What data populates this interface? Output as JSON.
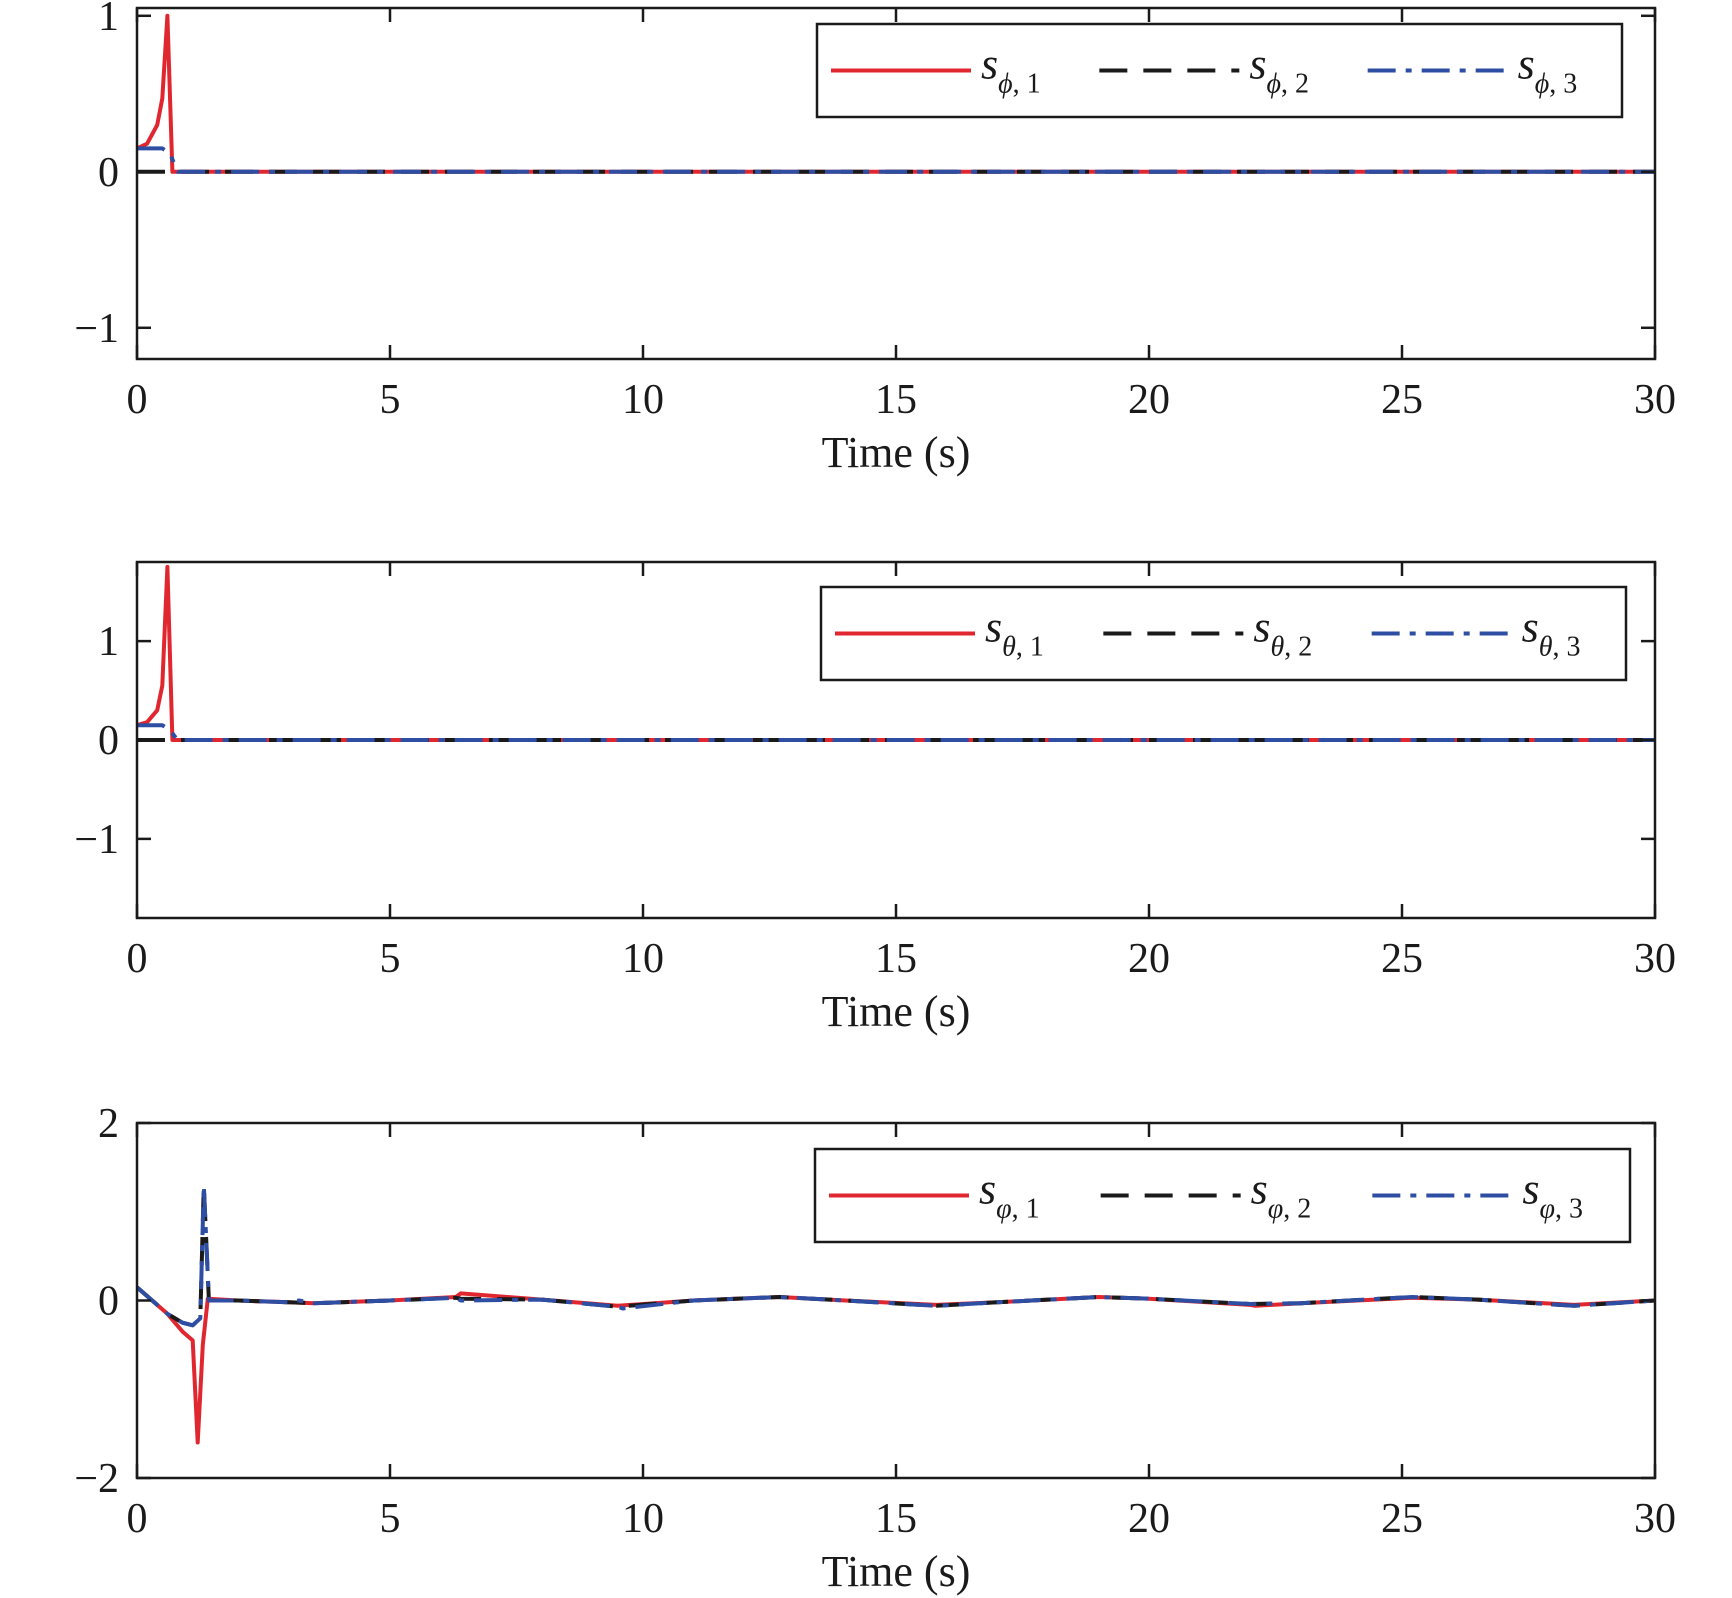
{
  "colors": {
    "s1": "#e0262f",
    "s2": "#1a1a1a",
    "s3": "#2e4ea3",
    "axis": "#1a1a1a",
    "background": "#ffffff"
  },
  "chart_data": [
    {
      "type": "line",
      "xlabel": "Time (s)",
      "ylabel": "",
      "xlim": [
        0,
        30
      ],
      "ylim": [
        -1.2,
        1.05
      ],
      "xticks": [
        0,
        5,
        10,
        15,
        20,
        25,
        30
      ],
      "yticks": [
        -1,
        0,
        1
      ],
      "ytick_labels": [
        "−1",
        "0",
        "1"
      ],
      "grid": false,
      "legend": {
        "placement": "top-right",
        "orientation": "horizontal"
      },
      "series": [
        {
          "name": "s_{ϕ, 1}",
          "base": "s",
          "sub_symbol": "ϕ",
          "sub_index": "1",
          "style": "solid",
          "color": "#e0262f",
          "x": [
            0,
            0.2,
            0.4,
            0.5,
            0.6,
            0.7,
            0.8,
            30
          ],
          "y": [
            0.15,
            0.18,
            0.3,
            0.47,
            1.0,
            0.0,
            0.0,
            0.0
          ]
        },
        {
          "name": "s_{ϕ, 2}",
          "base": "s",
          "sub_symbol": "ϕ",
          "sub_index": "2",
          "style": "dashed",
          "color": "#1a1a1a",
          "x": [
            0,
            0.1,
            0.2,
            30
          ],
          "y": [
            0.0,
            0.0,
            0.0,
            0.0
          ]
        },
        {
          "name": "s_{ϕ, 3}",
          "base": "s",
          "sub_symbol": "ϕ",
          "sub_index": "3",
          "style": "dashdot",
          "color": "#2e4ea3",
          "x": [
            0,
            0.5,
            0.65,
            0.8,
            30
          ],
          "y": [
            0.15,
            0.15,
            0.12,
            0.0,
            0.0
          ]
        }
      ]
    },
    {
      "type": "line",
      "xlabel": "Time (s)",
      "ylabel": "",
      "xlim": [
        0,
        30
      ],
      "ylim": [
        -1.8,
        1.8
      ],
      "xticks": [
        0,
        5,
        10,
        15,
        20,
        25,
        30
      ],
      "yticks": [
        -1,
        0,
        1
      ],
      "ytick_labels": [
        "−1",
        "0",
        "1"
      ],
      "grid": false,
      "legend": {
        "placement": "top-right",
        "orientation": "horizontal"
      },
      "series": [
        {
          "name": "s_{θ, 1}",
          "base": "s",
          "sub_symbol": "θ",
          "sub_index": "1",
          "style": "solid",
          "color": "#e0262f",
          "x": [
            0,
            0.2,
            0.4,
            0.5,
            0.6,
            0.7,
            0.8,
            30
          ],
          "y": [
            0.15,
            0.18,
            0.3,
            0.55,
            1.75,
            0.0,
            0.0,
            0.0
          ]
        },
        {
          "name": "s_{θ, 2}",
          "base": "s",
          "sub_symbol": "θ",
          "sub_index": "2",
          "style": "dashed",
          "color": "#1a1a1a",
          "x": [
            0,
            0.1,
            0.2,
            30
          ],
          "y": [
            0.0,
            0.0,
            0.0,
            0.0
          ]
        },
        {
          "name": "s_{θ, 3}",
          "base": "s",
          "sub_symbol": "θ",
          "sub_index": "3",
          "style": "dashdot",
          "color": "#2e4ea3",
          "x": [
            0,
            0.5,
            0.65,
            0.8,
            30
          ],
          "y": [
            0.15,
            0.15,
            0.1,
            0.0,
            0.0
          ]
        }
      ]
    },
    {
      "type": "line",
      "xlabel": "Time (s)",
      "ylabel": "",
      "xlim": [
        0,
        30
      ],
      "ylim": [
        -2,
        2
      ],
      "xticks": [
        0,
        5,
        10,
        15,
        20,
        25,
        30
      ],
      "yticks": [
        -2,
        0,
        2
      ],
      "ytick_labels": [
        "−2",
        "0",
        "2"
      ],
      "grid": false,
      "legend": {
        "placement": "top-right",
        "orientation": "horizontal"
      },
      "series": [
        {
          "name": "s_{φ, 1}",
          "base": "s",
          "sub_symbol": "φ",
          "sub_index": "1",
          "style": "solid",
          "color": "#e0262f",
          "x": [
            0,
            0.3,
            0.6,
            0.9,
            1.1,
            1.2,
            1.3,
            1.4,
            2,
            3,
            3.5,
            5,
            6.3,
            6.4,
            8,
            9.5,
            11,
            12.7,
            14,
            15.8,
            17,
            19,
            20,
            22,
            22.1,
            23,
            25.2,
            26.5,
            28.4,
            30
          ],
          "y": [
            0.15,
            0.0,
            -0.15,
            -0.35,
            -0.45,
            -1.6,
            -0.5,
            0.02,
            0.0,
            -0.02,
            -0.03,
            0.0,
            0.04,
            0.08,
            0.01,
            -0.06,
            0.0,
            0.04,
            0.0,
            -0.05,
            -0.02,
            0.04,
            0.02,
            -0.05,
            -0.06,
            -0.03,
            0.03,
            0.01,
            -0.05,
            0.0
          ]
        },
        {
          "name": "s_{φ, 2}",
          "base": "s",
          "sub_symbol": "φ",
          "sub_index": "2",
          "style": "dashed",
          "color": "#1a1a1a",
          "x": [
            0,
            0.3,
            0.6,
            0.9,
            1.1,
            1.25,
            1.32,
            1.42,
            2,
            3,
            3.5,
            5,
            6.3,
            6.4,
            8,
            9.5,
            11,
            12.7,
            14,
            15.8,
            17,
            19,
            20,
            22,
            23,
            25.2,
            26.5,
            28.4,
            30
          ],
          "y": [
            0.15,
            0.0,
            -0.15,
            -0.25,
            -0.28,
            -0.2,
            1.3,
            0.0,
            0.0,
            -0.02,
            -0.03,
            0.0,
            0.03,
            0.02,
            0.01,
            -0.07,
            0.0,
            0.04,
            0.0,
            -0.06,
            -0.02,
            0.04,
            0.02,
            -0.04,
            -0.03,
            0.04,
            0.01,
            -0.06,
            0.0
          ]
        },
        {
          "name": "s_{φ, 3}",
          "base": "s",
          "sub_symbol": "φ",
          "sub_index": "3",
          "style": "dashdot",
          "color": "#2e4ea3",
          "x": [
            0,
            0.3,
            0.6,
            0.9,
            1.1,
            1.25,
            1.32,
            1.42,
            2,
            3,
            3.2,
            3.5,
            5,
            6.3,
            6.4,
            8,
            9.5,
            9.6,
            11,
            12.7,
            14,
            15.8,
            17,
            19,
            20,
            22,
            23,
            25.2,
            26.5,
            28.4,
            30
          ],
          "y": [
            0.15,
            0.0,
            -0.15,
            -0.25,
            -0.28,
            -0.2,
            1.3,
            0.0,
            0.0,
            -0.02,
            0.0,
            -0.03,
            0.0,
            0.03,
            0.0,
            0.01,
            -0.07,
            -0.09,
            0.0,
            0.04,
            0.0,
            -0.06,
            -0.02,
            0.04,
            0.02,
            -0.04,
            -0.03,
            0.04,
            0.01,
            -0.06,
            0.0
          ]
        }
      ]
    }
  ]
}
